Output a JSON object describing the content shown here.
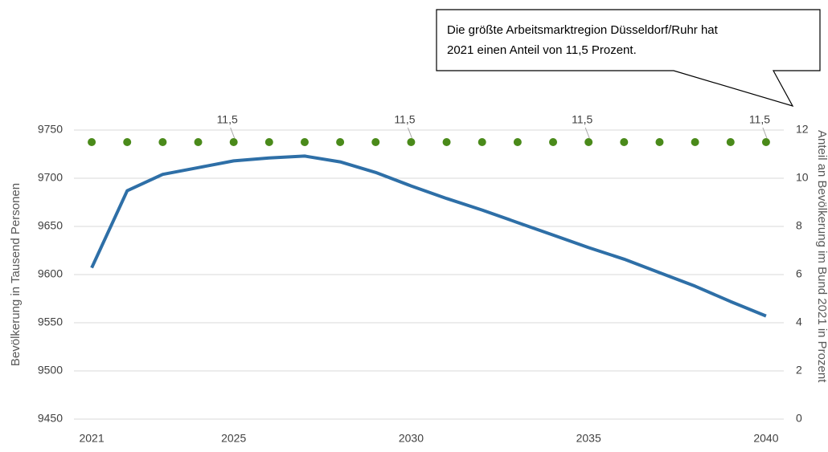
{
  "chart_data": {
    "type": "line",
    "annotation": [
      "Die größte Arbeitsmarktregion Düsseldorf/Ruhr hat",
      "2021 einen Anteil von 11,5 Prozent."
    ],
    "y_label": "Bevölkerung in Tausend Personen",
    "y2_label": "Anteil an Bevölkerung im Bund 2021 in Prozent",
    "x": [
      2021,
      2022,
      2023,
      2024,
      2025,
      2026,
      2027,
      2028,
      2029,
      2030,
      2031,
      2032,
      2033,
      2034,
      2035,
      2036,
      2037,
      2038,
      2039,
      2040
    ],
    "xlim": [
      2020.5,
      2040.5
    ],
    "xticks": [
      2021,
      2025,
      2030,
      2035,
      2040
    ],
    "ylim": [
      9450,
      9750
    ],
    "yticks": [
      9450,
      9500,
      9550,
      9600,
      9650,
      9700,
      9750
    ],
    "y2lim": [
      0,
      12
    ],
    "y2ticks": [
      0,
      2,
      4,
      6,
      8,
      10,
      12
    ],
    "grid": true,
    "series": [
      {
        "color": "#2e6fa7",
        "marker": "none",
        "values": [
          9607,
          9687,
          9704,
          9711,
          9718,
          9721,
          9723,
          9717,
          9706,
          9692,
          9679,
          9667,
          9654,
          9641,
          9628,
          9616,
          9602,
          9588,
          9572,
          9557
        ]
      },
      {
        "color": "#4a8a1a",
        "marker": "dot",
        "axis": "y2",
        "values": [
          11.5,
          11.5,
          11.5,
          11.5,
          11.5,
          11.5,
          11.5,
          11.5,
          11.5,
          11.5,
          11.5,
          11.5,
          11.5,
          11.5,
          11.5,
          11.5,
          11.5,
          11.5,
          11.5,
          11.5
        ],
        "value_labels": [
          null,
          null,
          null,
          null,
          "11,5",
          null,
          null,
          null,
          null,
          "11,5",
          null,
          null,
          null,
          null,
          "11,5",
          null,
          null,
          null,
          null,
          "11,5"
        ]
      }
    ]
  }
}
